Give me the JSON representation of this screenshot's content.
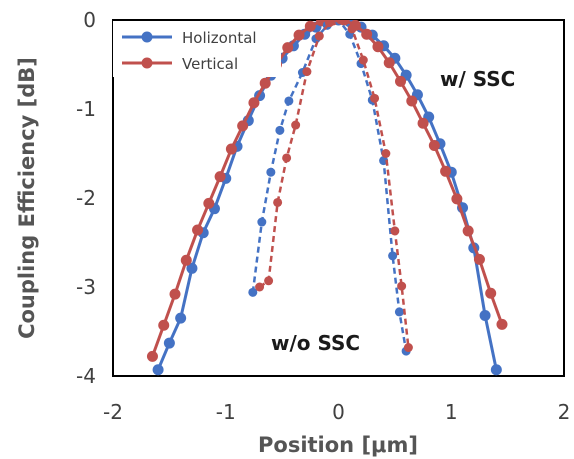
{
  "chart_data": {
    "type": "line",
    "xlabel": "Position [μm]",
    "ylabel": "Coupling Efficiency [dB]",
    "xlim": [
      -2,
      2
    ],
    "ylim": [
      -4,
      0
    ],
    "x_ticks": [
      "-2",
      "-1",
      "0",
      "1",
      "2"
    ],
    "y_ticks": [
      "0",
      "-1",
      "-2",
      "-3",
      "-4"
    ],
    "grid": false,
    "legend_position": "top-left",
    "annotations": [
      {
        "text": "w/ SSC",
        "x": 1.28,
        "y": -0.67
      },
      {
        "text": "w/o SSC",
        "x": -0.6,
        "y": -3.63
      }
    ],
    "series": [
      {
        "name": "Holizontal",
        "color": "#4472C4",
        "style": "solid",
        "marker": true,
        "x": [
          -1.6,
          -1.5,
          -1.4,
          -1.3,
          -1.2,
          -1.1,
          -1.0,
          -0.9,
          -0.8,
          -0.7,
          -0.6,
          -0.5,
          -0.4,
          -0.3,
          -0.2,
          -0.1,
          0.0,
          0.1,
          0.2,
          0.3,
          0.4,
          0.5,
          0.6,
          0.7,
          0.8,
          0.9,
          1.0,
          1.1,
          1.2,
          1.3,
          1.4
        ],
        "y": [
          -3.93,
          -3.63,
          -3.35,
          -2.79,
          -2.39,
          -2.12,
          -1.78,
          -1.42,
          -1.13,
          -0.85,
          -0.62,
          -0.43,
          -0.29,
          -0.16,
          -0.08,
          -0.02,
          0.0,
          -0.02,
          -0.08,
          -0.17,
          -0.29,
          -0.43,
          -0.62,
          -0.84,
          -1.09,
          -1.39,
          -1.71,
          -2.11,
          -2.56,
          -3.32,
          -3.93
        ]
      },
      {
        "name": "Vertical",
        "color": "#C0504D",
        "style": "solid",
        "marker": true,
        "x": [
          -1.65,
          -1.55,
          -1.45,
          -1.35,
          -1.25,
          -1.15,
          -1.05,
          -0.95,
          -0.85,
          -0.75,
          -0.65,
          -0.55,
          -0.45,
          -0.35,
          -0.25,
          -0.15,
          -0.05,
          0.05,
          0.15,
          0.25,
          0.35,
          0.45,
          0.55,
          0.65,
          0.75,
          0.85,
          0.95,
          1.05,
          1.15,
          1.25,
          1.35,
          1.45
        ],
        "y": [
          -3.78,
          -3.43,
          -3.08,
          -2.7,
          -2.36,
          -2.06,
          -1.76,
          -1.45,
          -1.19,
          -0.93,
          -0.71,
          -0.5,
          -0.31,
          -0.17,
          -0.07,
          -0.01,
          0.0,
          0.0,
          -0.06,
          -0.16,
          -0.3,
          -0.48,
          -0.69,
          -0.91,
          -1.16,
          -1.41,
          -1.7,
          -2.01,
          -2.37,
          -2.69,
          -3.07,
          -3.42
        ]
      },
      {
        "name": "",
        "color": "#4472C4",
        "style": "dashed",
        "marker": true,
        "x": [
          -0.76,
          -0.68,
          -0.6,
          -0.52,
          -0.44,
          -0.32,
          -0.2,
          -0.1,
          0.0,
          0.1,
          0.2,
          0.3,
          0.4,
          0.48,
          0.54,
          0.6
        ],
        "y": [
          -3.06,
          -2.27,
          -1.71,
          -1.24,
          -0.91,
          -0.59,
          -0.21,
          -0.06,
          0.0,
          -0.16,
          -0.49,
          -0.9,
          -1.58,
          -2.65,
          -3.28,
          -3.72
        ]
      },
      {
        "name": "",
        "color": "#C0504D",
        "style": "dashed",
        "marker": true,
        "x": [
          -0.7,
          -0.62,
          -0.54,
          -0.46,
          -0.38,
          -0.28,
          -0.17,
          -0.08,
          0.02,
          0.12,
          0.22,
          0.32,
          0.42,
          0.5,
          0.56,
          0.62
        ],
        "y": [
          -3.0,
          -2.93,
          -2.05,
          -1.55,
          -1.18,
          -0.58,
          -0.18,
          -0.03,
          0.0,
          -0.1,
          -0.45,
          -0.88,
          -1.5,
          -2.37,
          -2.99,
          -3.68
        ]
      }
    ]
  }
}
